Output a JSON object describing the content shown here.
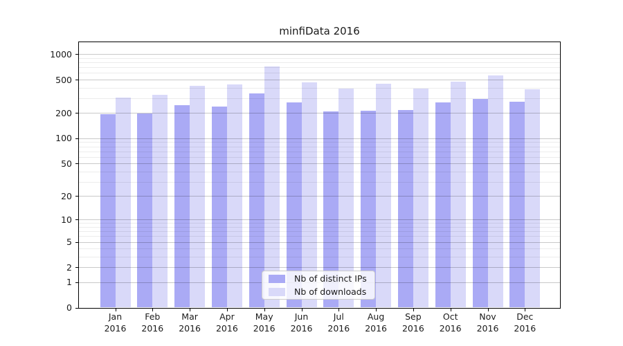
{
  "window": {
    "background": "#ffffff"
  },
  "chart_data": {
    "type": "bar",
    "title": "minfiData 2016",
    "categories": [
      "Jan 2016",
      "Feb 2016",
      "Mar 2016",
      "Apr 2016",
      "May 2016",
      "Jun 2016",
      "Jul 2016",
      "Aug 2016",
      "Sep 2016",
      "Oct 2016",
      "Nov 2016",
      "Dec 2016"
    ],
    "series": [
      {
        "name": "Nb of distinct IPs",
        "color": "#aaaaf5",
        "values": [
          194,
          199,
          249,
          238,
          344,
          268,
          208,
          212,
          217,
          268,
          297,
          275
        ]
      },
      {
        "name": "Nb of downloads",
        "color": "#d9d9f9",
        "values": [
          308,
          328,
          425,
          438,
          720,
          462,
          389,
          447,
          392,
          476,
          561,
          382
        ]
      }
    ],
    "yscale": "log1p",
    "yticks": [
      0,
      1,
      2,
      5,
      10,
      20,
      50,
      100,
      200,
      500,
      1000
    ],
    "minor_yticks": [
      3,
      4,
      6,
      7,
      8,
      9,
      30,
      40,
      60,
      70,
      80,
      90,
      300,
      400,
      600,
      700,
      800,
      900
    ],
    "ylim": [
      0,
      1414
    ],
    "xlabel": "",
    "ylabel": "",
    "grid": true,
    "legend_position": "lower-center"
  },
  "colors": {
    "distinct_ips_bar": "#aaaaf5",
    "downloads_bar": "#d9d9f9",
    "grid_major": "#c9c9c9",
    "grid_minor": "#ececec",
    "axis": "#000000"
  }
}
